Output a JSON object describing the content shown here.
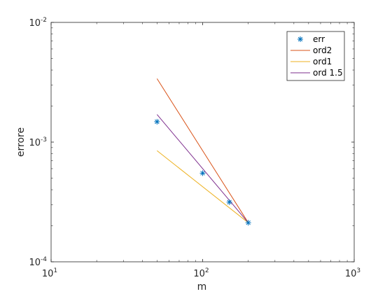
{
  "chart_data": {
    "type": "line",
    "xlabel": "m",
    "ylabel": "errore",
    "xscale": "log",
    "yscale": "log",
    "xlim": [
      10,
      1000
    ],
    "ylim": [
      0.0001,
      0.01
    ],
    "x_ticks": [
      {
        "value": 10,
        "base": "10",
        "exp": "1"
      },
      {
        "value": 100,
        "base": "10",
        "exp": "2"
      },
      {
        "value": 1000,
        "base": "10",
        "exp": "3"
      }
    ],
    "y_ticks": [
      {
        "value": 0.0001,
        "base": "10",
        "exp": "-4"
      },
      {
        "value": 0.001,
        "base": "10",
        "exp": "-3"
      },
      {
        "value": 0.01,
        "base": "10",
        "exp": "-2"
      }
    ],
    "grid": false,
    "legend_position": "top-right",
    "series": [
      {
        "name": "err",
        "style": "markers",
        "marker": "asterisk",
        "color": "#0072BD",
        "x": [
          50,
          100,
          150,
          200
        ],
        "y": [
          0.00148,
          0.00055,
          0.000315,
          0.000212
        ]
      },
      {
        "name": "ord2",
        "style": "line",
        "color": "#D95319",
        "x": [
          50,
          200
        ],
        "y": [
          0.00339,
          0.000212
        ]
      },
      {
        "name": "ord1",
        "style": "line",
        "color": "#EDB120",
        "x": [
          50,
          200
        ],
        "y": [
          0.000848,
          0.000212
        ]
      },
      {
        "name": "ord 1.5",
        "style": "line",
        "color": "#7E2F8E",
        "x": [
          50,
          200
        ],
        "y": [
          0.0017,
          0.000212
        ]
      }
    ]
  }
}
